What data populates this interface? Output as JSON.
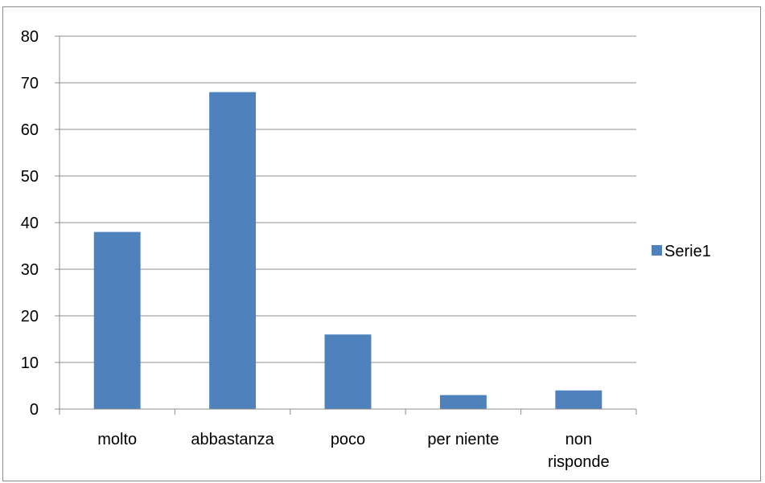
{
  "chart_data": {
    "type": "bar",
    "title": "",
    "xlabel": "",
    "ylabel": "",
    "categories": [
      "molto",
      "abbastanza",
      "poco",
      "per niente",
      "non risponde"
    ],
    "category_lines": [
      [
        "molto"
      ],
      [
        "abbastanza"
      ],
      [
        "poco"
      ],
      [
        "per niente"
      ],
      [
        "non",
        "risponde"
      ]
    ],
    "series": [
      {
        "name": "Serie1",
        "values": [
          38,
          68,
          16,
          3,
          4
        ],
        "color": "#4f81bd"
      }
    ],
    "ylim": [
      0,
      80
    ],
    "yticks": [
      0,
      10,
      20,
      30,
      40,
      50,
      60,
      70,
      80
    ],
    "grid": true,
    "legend": "right",
    "colors": {
      "gridline": "#8c8c8c",
      "axis": "#8c8c8c",
      "frame": "#8c8c8c"
    }
  }
}
